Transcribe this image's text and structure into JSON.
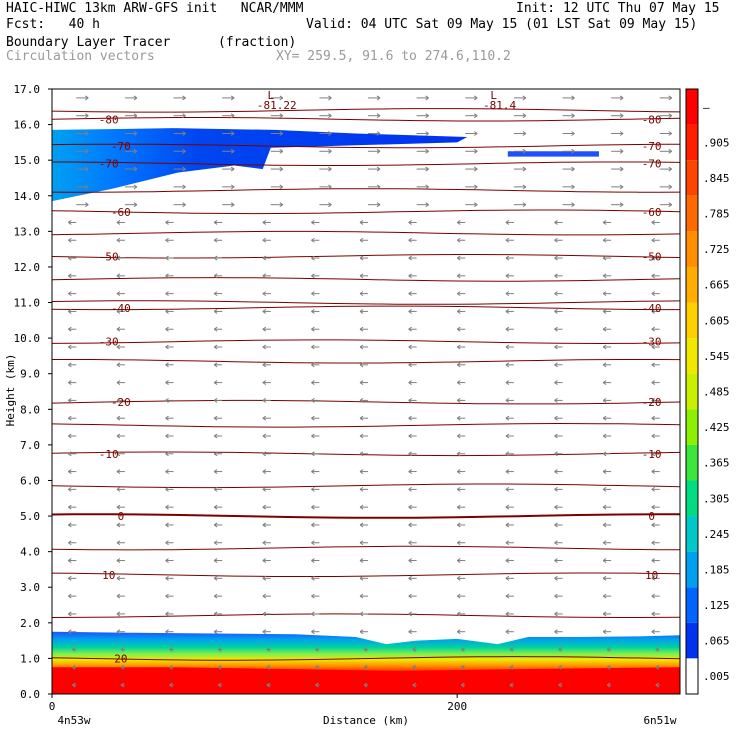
{
  "header": {
    "line1_left": "HAIC-HIWC 13km ARW-GFS init   NCAR/MMM",
    "line1_right": "Init: 12 UTC Thu 07 May 15",
    "line2_left": "Fcst:   40 h",
    "line2_right": "Valid: 04 UTC Sat 09 May 15 (01 LST Sat 09 May 15)",
    "line3_left": "Boundary Layer Tracer",
    "line3_units": "(fraction)",
    "line4_left": "Circulation vectors",
    "line4_xy": "XY= 259.5, 91.6 to 274.6,110.2"
  },
  "colors": {
    "contour": "#7a0000",
    "vector": "#7f7f7f"
  },
  "chart_data": {
    "type": "heatmap",
    "xlabel": "Distance (km)",
    "ylabel": "Height (km)",
    "xlim": [
      0,
      310
    ],
    "ylim": [
      0,
      17
    ],
    "x_ticks": [
      "0",
      "200"
    ],
    "x_end_labels": [
      "4n53w",
      "6n51w"
    ],
    "y_ticks": [
      "0.0",
      "1.0",
      "2.0",
      "3.0",
      "4.0",
      "5.0",
      "6.0",
      "7.0",
      "8.0",
      "9.0",
      "10.0",
      "11.0",
      "12.0",
      "13.0",
      "14.0",
      "15.0",
      "16.0",
      "17.0"
    ],
    "colorbar": {
      "labels": [
        "–",
        ".905",
        ".845",
        ".785",
        ".725",
        ".665",
        ".605",
        ".545",
        ".485",
        ".425",
        ".365",
        ".305",
        ".245",
        ".185",
        ".125",
        ".065",
        ".005"
      ],
      "colors": [
        "#ff0000",
        "#ff1e00",
        "#ff4400",
        "#ff6a00",
        "#ff8e00",
        "#ffae00",
        "#ffd000",
        "#f0e800",
        "#c8f000",
        "#8cf000",
        "#3ce63c",
        "#00dc82",
        "#00c8c8",
        "#00a0f0",
        "#0064ff",
        "#0032f0",
        "#ffffff"
      ]
    },
    "temperature_contours": [
      {
        "label": "-80",
        "height": 16.15
      },
      {
        "label": "-70",
        "height": 15.4
      },
      {
        "label": "-70",
        "height": 14.9
      },
      {
        "label": "-60",
        "height": 13.55
      },
      {
        "label": "-50",
        "height": 12.3
      },
      {
        "label": "-40",
        "height": 10.85
      },
      {
        "label": "-30",
        "height": 9.9
      },
      {
        "label": "-20",
        "height": 8.2
      },
      {
        "label": "-10",
        "height": 6.75
      },
      {
        "label": "0",
        "height": 5.0
      },
      {
        "label": "10",
        "height": 3.35
      },
      {
        "label": "20",
        "height": 1.0
      }
    ],
    "unlabeled_contour_heights": [
      16.4,
      14.15,
      12.95,
      11.65,
      11.0,
      9.35,
      7.55,
      5.85,
      4.1,
      2.2
    ],
    "lows": [
      {
        "mark": "L",
        "value": "-81.22",
        "x": 108
      },
      {
        "mark": "L",
        "value": "-81.4",
        "x": 218
      }
    ]
  }
}
